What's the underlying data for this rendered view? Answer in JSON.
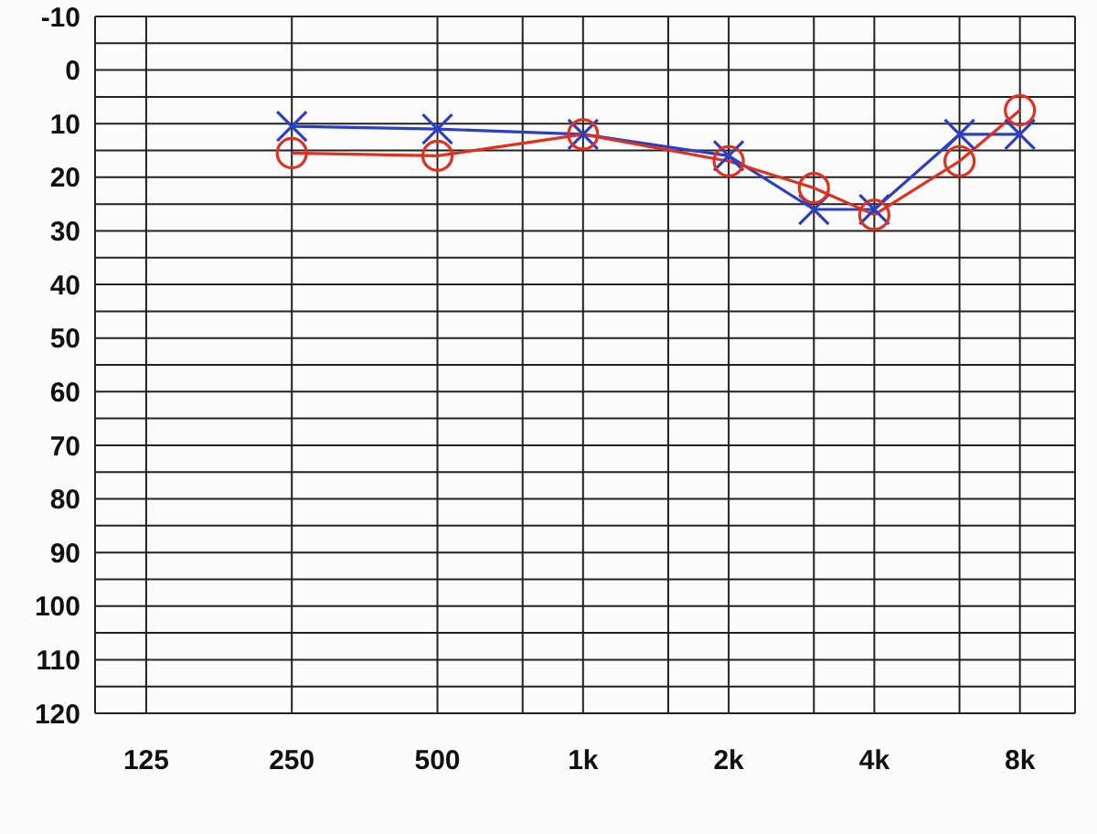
{
  "chart_data": {
    "type": "line",
    "x": [
      250,
      500,
      1000,
      2000,
      3000,
      4000,
      6000,
      8000
    ],
    "series": [
      {
        "color": "#2b3fc4",
        "values": [
          10.5,
          11,
          12,
          16,
          26,
          26,
          12,
          12
        ],
        "marker": "cross"
      },
      {
        "color": "#e0301e",
        "values": [
          15.5,
          16,
          12,
          17,
          22,
          27,
          17,
          7.5
        ],
        "marker": "circle"
      }
    ],
    "log": "x",
    "xlim": [
      98,
      10400
    ],
    "ylim": [
      120,
      -10
    ],
    "xticks": [
      125,
      250,
      500,
      {
        "value": 750,
        "label": null
      },
      {
        "value": 1000,
        "label": "1k"
      },
      {
        "value": 1500,
        "label": null
      },
      {
        "value": 2000,
        "label": "2k"
      },
      {
        "value": 3000,
        "label": null
      },
      {
        "value": 4000,
        "label": "4k"
      },
      {
        "value": 6000,
        "label": null
      },
      {
        "value": 8000,
        "label": "8k"
      }
    ],
    "yticks": [
      -10,
      {
        "value": -5,
        "label": null
      },
      0,
      {
        "value": 5,
        "label": null
      },
      10,
      {
        "value": 15,
        "label": null
      },
      20,
      {
        "value": 25,
        "label": null
      },
      30,
      {
        "value": 35,
        "label": null
      },
      40,
      {
        "value": 45,
        "label": null
      },
      50,
      {
        "value": 55,
        "label": null
      },
      60,
      {
        "value": 65,
        "label": null
      },
      70,
      {
        "value": 75,
        "label": null
      },
      80,
      {
        "value": 85,
        "label": null
      },
      90,
      {
        "value": 95,
        "label": null
      },
      100,
      {
        "value": 105,
        "label": null
      },
      110,
      {
        "value": 115,
        "label": null
      },
      120
    ],
    "grid": true,
    "legend": false
  }
}
